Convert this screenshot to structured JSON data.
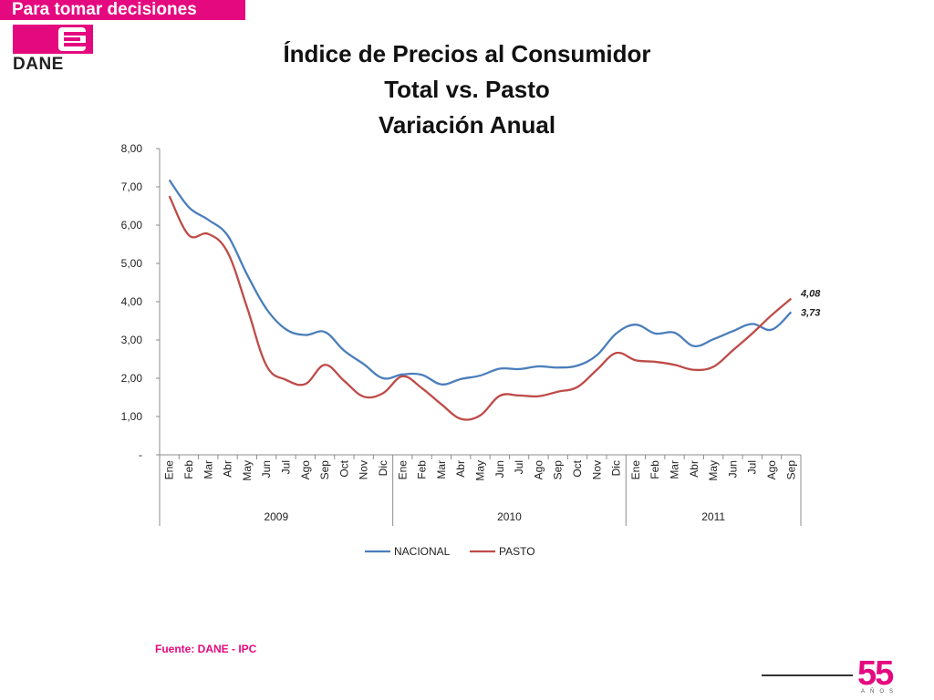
{
  "header": {
    "banner_text": "Para tomar decisiones",
    "logo_text": "DANE",
    "brand_color": "#e5097f"
  },
  "title_lines": [
    "Índice de Precios al Consumidor",
    "Total vs. Pasto",
    "Variación Anual"
  ],
  "footer": {
    "source": "Fuente: DANE - IPC",
    "anniversary_number": "55",
    "anniversary_text": "AÑOS"
  },
  "chart_data": {
    "type": "line",
    "title": "Índice de Precios al Consumidor Total vs. Pasto Variación Anual",
    "ylim": [
      0,
      8
    ],
    "yticks": [
      "-",
      "1,00",
      "2,00",
      "3,00",
      "4,00",
      "5,00",
      "6,00",
      "7,00",
      "8,00"
    ],
    "categories": [
      "Ene",
      "Feb",
      "Mar",
      "Abr",
      "May",
      "Jun",
      "Jul",
      "Ago",
      "Sep",
      "Oct",
      "Nov",
      "Dic",
      "Ene",
      "Feb",
      "Mar",
      "Abr",
      "May",
      "Jun",
      "Jul",
      "Ago",
      "Sep",
      "Oct",
      "Nov",
      "Dic",
      "Ene",
      "Feb",
      "Mar",
      "Abr",
      "May",
      "Jun",
      "Jul",
      "Ago",
      "Sep"
    ],
    "groups": [
      {
        "label": "2009",
        "count": 12
      },
      {
        "label": "2010",
        "count": 12
      },
      {
        "label": "2011",
        "count": 9
      }
    ],
    "series": [
      {
        "name": "NACIONAL",
        "color": "#4a7ebb",
        "values": [
          7.18,
          6.47,
          6.14,
          5.73,
          4.71,
          3.81,
          3.28,
          3.13,
          3.21,
          2.72,
          2.37,
          2.0,
          2.1,
          2.09,
          1.84,
          1.98,
          2.07,
          2.25,
          2.24,
          2.31,
          2.28,
          2.33,
          2.6,
          3.17,
          3.4,
          3.17,
          3.19,
          2.84,
          3.02,
          3.23,
          3.42,
          3.27,
          3.73
        ],
        "last_label": "3,73"
      },
      {
        "name": "PASTO",
        "color": "#be4b48",
        "values": [
          6.76,
          5.74,
          5.77,
          5.29,
          3.85,
          2.33,
          1.96,
          1.85,
          2.35,
          1.93,
          1.52,
          1.61,
          2.05,
          1.74,
          1.32,
          0.94,
          1.03,
          1.54,
          1.55,
          1.53,
          1.65,
          1.77,
          2.22,
          2.66,
          2.47,
          2.43,
          2.35,
          2.22,
          2.3,
          2.73,
          3.17,
          3.65,
          4.08
        ],
        "last_label": "4,08"
      }
    ],
    "legend": [
      "NACIONAL",
      "PASTO"
    ],
    "legend_position": "bottom"
  }
}
